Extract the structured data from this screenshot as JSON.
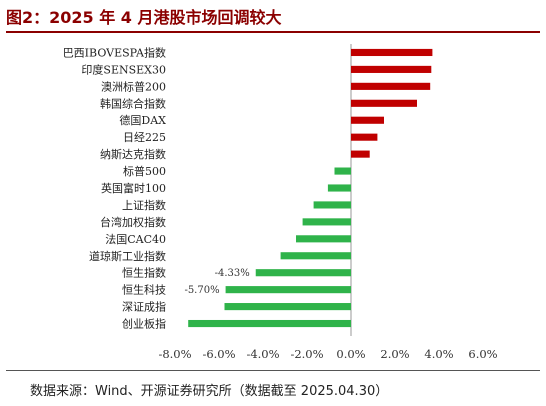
{
  "title": "图2：2025 年 4 月港股市场回调较大",
  "source": "数据来源：Wind、开源证券研究所（数据截至 2025.04.30）",
  "colors": {
    "positive": "#c00000",
    "negative": "#2fb34a",
    "title": "#8b0000"
  },
  "chart_data": {
    "type": "bar",
    "orientation": "horizontal",
    "categories": [
      "巴西IBOVESPA指数",
      "印度SENSEX30",
      "澳洲标普200",
      "韩国综合指数",
      "德国DAX",
      "日经225",
      "纳斯达克指数",
      "标普500",
      "英国富时100",
      "上证指数",
      "台湾加权指数",
      "法国CAC40",
      "道琼斯工业指数",
      "恒生指数",
      "恒生科技",
      "深证成指",
      "创业板指"
    ],
    "values": [
      3.7,
      3.65,
      3.6,
      3.0,
      1.5,
      1.2,
      0.85,
      -0.75,
      -1.05,
      -1.7,
      -2.2,
      -2.5,
      -3.2,
      -4.33,
      -5.7,
      -5.75,
      -7.4
    ],
    "data_labels": {
      "恒生指数": "-4.33%",
      "恒生科技": "-5.70%"
    },
    "xlim": [
      -8,
      6
    ],
    "xticks": [
      "-8.0%",
      "-6.0%",
      "-4.0%",
      "-2.0%",
      "0.0%",
      "2.0%",
      "4.0%",
      "6.0%"
    ],
    "xtick_values": [
      -8,
      -6,
      -4,
      -2,
      0,
      2,
      4,
      6
    ],
    "grid": false,
    "legend": "none"
  }
}
